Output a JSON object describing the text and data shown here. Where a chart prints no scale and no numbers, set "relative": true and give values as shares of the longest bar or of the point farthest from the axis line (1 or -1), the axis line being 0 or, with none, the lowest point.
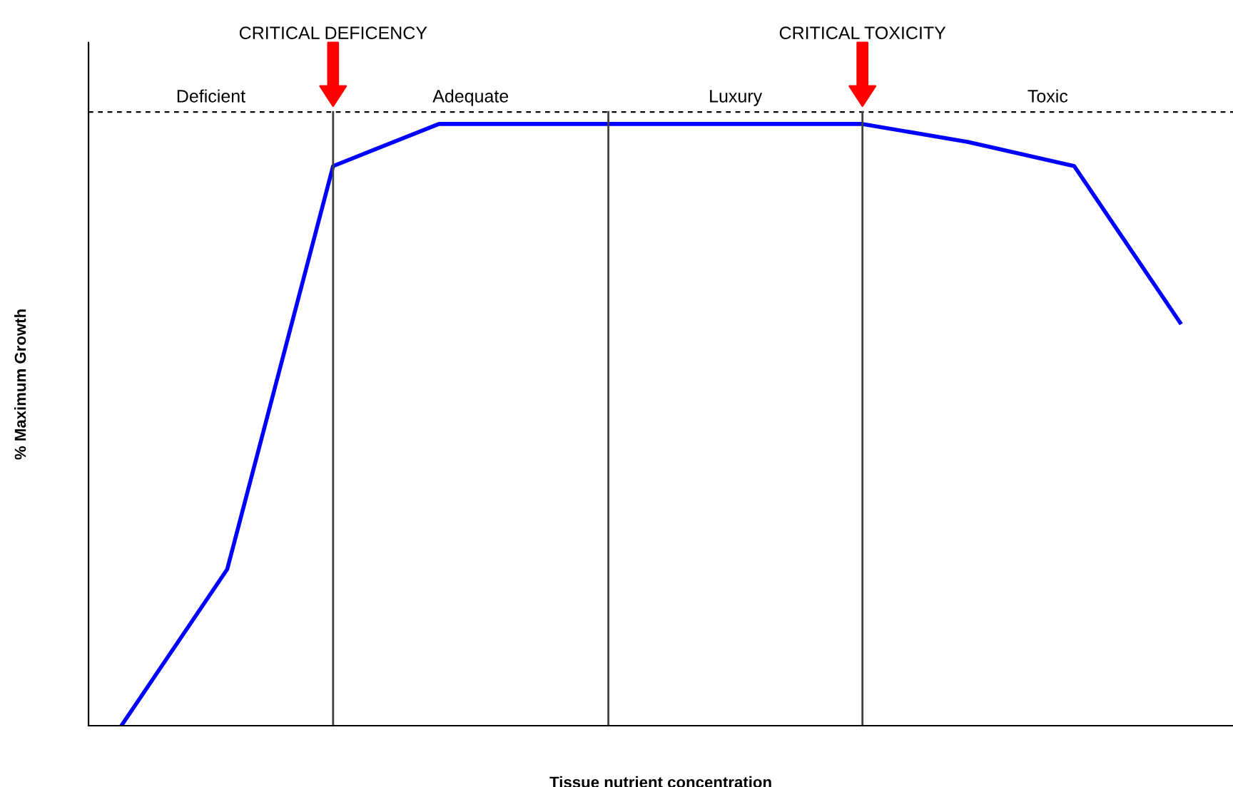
{
  "chart_data": {
    "type": "line",
    "relative": true,
    "xlabel": "Tissue nutrient concentration",
    "ylabel": "% Maximum Growth",
    "categories": [
      null,
      null,
      null,
      null,
      null,
      null,
      null,
      null,
      null,
      null,
      null
    ],
    "series": [
      {
        "color": "#0000ff",
        "values": [
          0,
          0.26,
          0.93,
          1,
          1,
          1,
          1,
          1,
          0.97,
          0.93,
          0.67
        ]
      }
    ],
    "marker": "none",
    "line_style": "solid",
    "annotations": [
      "Deficient",
      "Adequate",
      "Luxury",
      "Toxic",
      "CRITICAL DEFICENCY",
      "CRITICAL TOXICITY"
    ]
  }
}
